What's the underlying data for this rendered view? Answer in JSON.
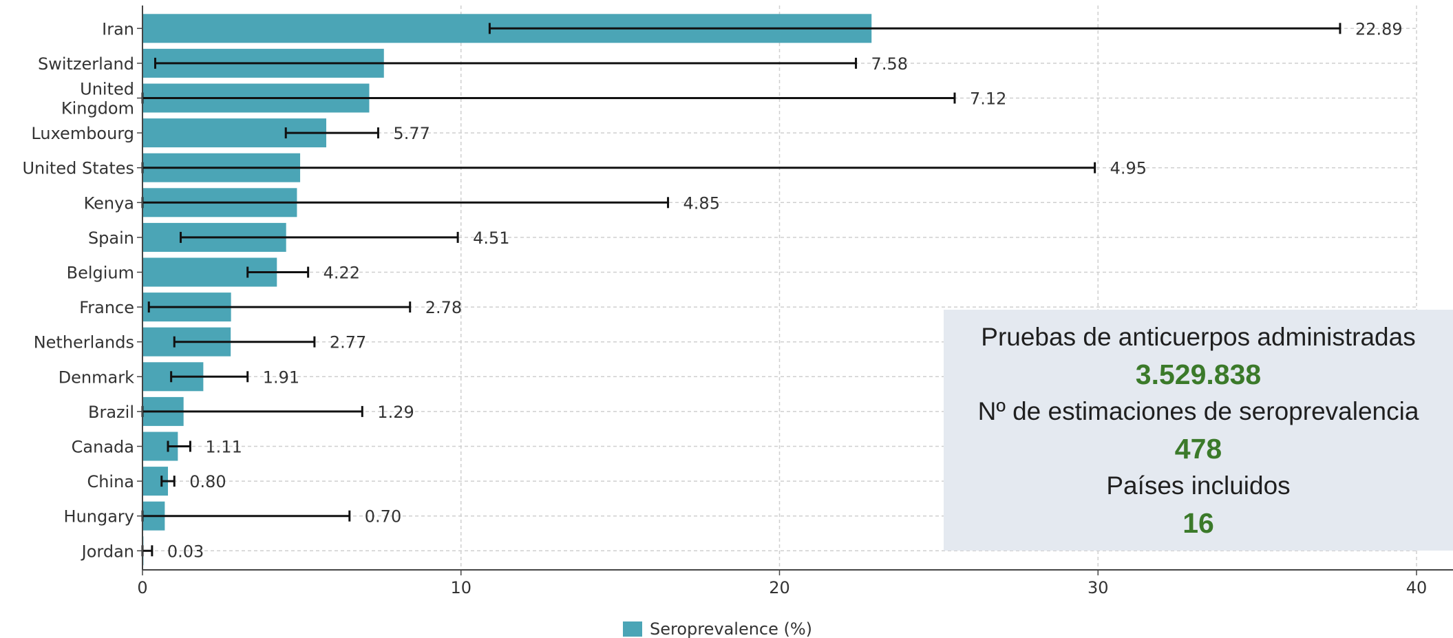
{
  "chart_data": {
    "type": "bar",
    "orientation": "horizontal",
    "categories": [
      "Iran",
      "Switzerland",
      "United Kingdom",
      "Luxembourg",
      "United States",
      "Kenya",
      "Spain",
      "Belgium",
      "France",
      "Netherlands",
      "Denmark",
      "Brazil",
      "Canada",
      "China",
      "Hungary",
      "Jordan"
    ],
    "category_labels": [
      [
        "Iran"
      ],
      [
        "Switzerland"
      ],
      [
        "United",
        "Kingdom"
      ],
      [
        "Luxembourg"
      ],
      [
        "United States"
      ],
      [
        "Kenya"
      ],
      [
        "Spain"
      ],
      [
        "Belgium"
      ],
      [
        "France"
      ],
      [
        "Netherlands"
      ],
      [
        "Denmark"
      ],
      [
        "Brazil"
      ],
      [
        "Canada"
      ],
      [
        "China"
      ],
      [
        "Hungary"
      ],
      [
        "Jordan"
      ]
    ],
    "series": [
      {
        "name": "Seroprevalence (%)",
        "values": [
          22.89,
          7.58,
          7.12,
          5.77,
          4.95,
          4.85,
          4.51,
          4.22,
          2.78,
          2.77,
          1.91,
          1.29,
          1.11,
          0.8,
          0.7,
          0.03
        ],
        "value_labels": [
          "22.89",
          "7.58",
          "7.12",
          "5.77",
          "4.95",
          "4.85",
          "4.51",
          "4.22",
          "2.78",
          "2.77",
          "1.91",
          "1.29",
          "1.11",
          "0.80",
          "0.70",
          "0.03"
        ],
        "error_low": [
          10.9,
          0.4,
          0.0,
          4.5,
          0.0,
          0.0,
          1.2,
          3.3,
          0.2,
          1.0,
          0.9,
          0.0,
          0.8,
          0.6,
          0.0,
          0.0
        ],
        "error_high": [
          37.6,
          22.4,
          25.5,
          7.4,
          29.9,
          16.5,
          9.9,
          5.2,
          8.4,
          5.4,
          3.3,
          6.9,
          1.5,
          1.0,
          6.5,
          0.3
        ]
      }
    ],
    "xlim": [
      0,
      40
    ],
    "xticks": [
      0,
      10,
      20,
      30,
      40
    ],
    "grid": true,
    "legend_position": "bottom-center",
    "colors": {
      "bar": "#4ba5b6",
      "error": "#111111",
      "grid": "#cfcfcf",
      "axis": "#444444",
      "text": "#333333"
    }
  },
  "info_box": {
    "tests_label": "Pruebas de anticuerpos administradas",
    "tests_value": "3.529.838",
    "estimates_label": "Nº de estimaciones de seroprevalencia",
    "estimates_value": "478",
    "countries_label": "Países incluidos",
    "countries_value": "16",
    "background": "#e4e9f0",
    "value_color": "#3b7a2a"
  }
}
